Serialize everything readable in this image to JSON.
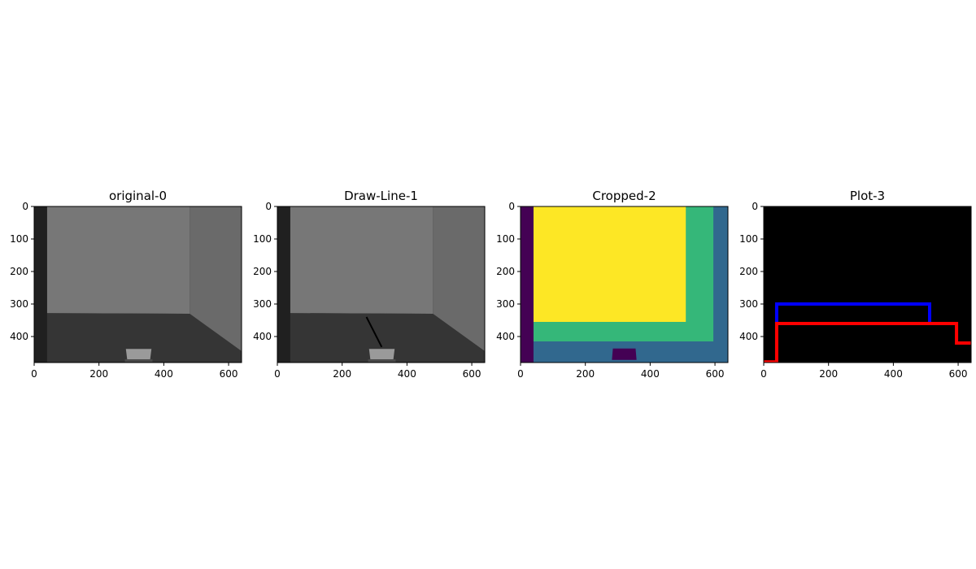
{
  "chart_data": [
    {
      "type": "image",
      "title": "original-0",
      "content": "grayscale-room",
      "xlim": [
        0,
        640
      ],
      "ylim": [
        480,
        0
      ],
      "xticks": [
        0,
        200,
        400,
        600
      ],
      "yticks": [
        0,
        100,
        200,
        300,
        400
      ],
      "xtick_labels": [
        "0",
        "200",
        "400",
        "600"
      ],
      "ytick_labels": [
        "0",
        "100",
        "200",
        "300",
        "400"
      ],
      "colors": {
        "left_strip": "#202020",
        "back_wall": "#777777",
        "right_wall": "#6a6a6a",
        "floor": "#353535",
        "object": "#9a9a9a"
      },
      "scene": {
        "left_strip_x": [
          0,
          40
        ],
        "back_wall": [
          [
            40,
            0
          ],
          [
            480,
            0
          ],
          [
            480,
            330
          ],
          [
            40,
            328
          ]
        ],
        "right_wall": [
          [
            480,
            0
          ],
          [
            640,
            0
          ],
          [
            640,
            445
          ],
          [
            480,
            330
          ]
        ],
        "floor": [
          [
            40,
            328
          ],
          [
            480,
            330
          ],
          [
            640,
            445
          ],
          [
            640,
            480
          ],
          [
            40,
            480
          ]
        ],
        "object": [
          [
            283,
            438
          ],
          [
            362,
            438
          ],
          [
            358,
            470
          ],
          [
            287,
            470
          ]
        ],
        "object_base": [
          [
            280,
            470
          ],
          [
            365,
            470
          ],
          [
            365,
            478
          ],
          [
            280,
            478
          ]
        ]
      }
    },
    {
      "type": "image",
      "title": "Draw-Line-1",
      "content": "grayscale-room-with-line",
      "xlim": [
        0,
        640
      ],
      "ylim": [
        480,
        0
      ],
      "xticks": [
        0,
        200,
        400,
        600
      ],
      "yticks": [
        0,
        100,
        200,
        300,
        400
      ],
      "xtick_labels": [
        "0",
        "200",
        "400",
        "600"
      ],
      "ytick_labels": [
        "0",
        "100",
        "200",
        "300",
        "400"
      ],
      "colors": {
        "left_strip": "#202020",
        "back_wall": "#777777",
        "right_wall": "#6a6a6a",
        "floor": "#353535",
        "object": "#9a9a9a",
        "line": "#000000"
      },
      "scene": {
        "left_strip_x": [
          0,
          40
        ],
        "back_wall": [
          [
            40,
            0
          ],
          [
            480,
            0
          ],
          [
            480,
            330
          ],
          [
            40,
            328
          ]
        ],
        "right_wall": [
          [
            480,
            0
          ],
          [
            640,
            0
          ],
          [
            640,
            445
          ],
          [
            480,
            330
          ]
        ],
        "floor": [
          [
            40,
            328
          ],
          [
            480,
            330
          ],
          [
            640,
            445
          ],
          [
            640,
            480
          ],
          [
            40,
            480
          ]
        ],
        "object": [
          [
            283,
            438
          ],
          [
            362,
            438
          ],
          [
            358,
            470
          ],
          [
            287,
            470
          ]
        ],
        "object_base": [
          [
            280,
            470
          ],
          [
            365,
            470
          ],
          [
            365,
            478
          ],
          [
            280,
            478
          ]
        ]
      },
      "line": [
        [
          275,
          340
        ],
        [
          322,
          432
        ]
      ]
    },
    {
      "type": "heatmap",
      "title": "Cropped-2",
      "content": "segmentation-mask",
      "xlim": [
        0,
        640
      ],
      "ylim": [
        480,
        0
      ],
      "xticks": [
        0,
        200,
        400,
        600
      ],
      "yticks": [
        0,
        100,
        200,
        300,
        400
      ],
      "xtick_labels": [
        "0",
        "200",
        "400",
        "600"
      ],
      "ytick_labels": [
        "0",
        "100",
        "200",
        "300",
        "400"
      ],
      "colors": {
        "dark": "#440154",
        "blue": "#31688e",
        "green": "#35b779",
        "yellow": "#fde725"
      },
      "regions": [
        {
          "color": "blue",
          "x": [
            0,
            640
          ],
          "y": [
            0,
            480
          ]
        },
        {
          "color": "green",
          "x": [
            40,
            595
          ],
          "y": [
            0,
            415
          ]
        },
        {
          "color": "yellow",
          "x": [
            40,
            510
          ],
          "y": [
            0,
            355
          ]
        },
        {
          "color": "dark",
          "x": [
            0,
            40
          ],
          "y": [
            0,
            480
          ]
        }
      ],
      "object": [
        [
          285,
          437
        ],
        [
          355,
          437
        ],
        [
          358,
          472
        ],
        [
          282,
          472
        ]
      ]
    },
    {
      "type": "line",
      "title": "Plot-3",
      "content": "bounding-lines",
      "xlim": [
        0,
        640
      ],
      "ylim": [
        480,
        0
      ],
      "xticks": [
        0,
        200,
        400,
        600
      ],
      "yticks": [
        0,
        100,
        200,
        300,
        400
      ],
      "xtick_labels": [
        "0",
        "200",
        "400",
        "600"
      ],
      "ytick_labels": [
        "0",
        "100",
        "200",
        "300",
        "400"
      ],
      "background": "#000000",
      "series": [
        {
          "color": "#0000ff",
          "x": [
            40,
            40,
            512,
            512
          ],
          "y": [
            358,
            300,
            300,
            358
          ]
        },
        {
          "color": "#ff0000",
          "x": [
            0,
            40,
            40,
            595,
            595,
            640
          ],
          "y": [
            478,
            478,
            360,
            360,
            420,
            420
          ]
        }
      ]
    }
  ]
}
